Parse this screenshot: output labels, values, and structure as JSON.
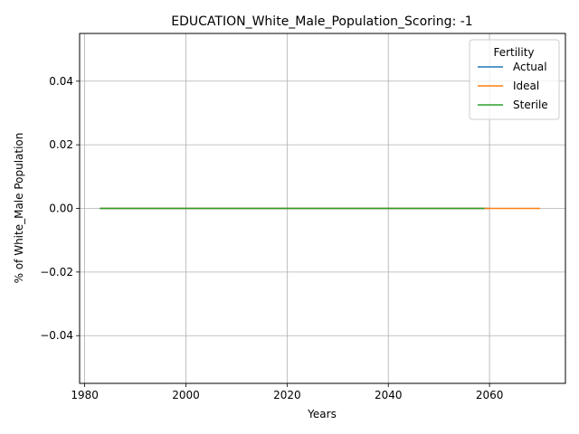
{
  "chart_data": {
    "type": "line",
    "title": "EDUCATION_White_Male_Population_Scoring: -1",
    "xlabel": "Years",
    "ylabel": "% of White_Male Population",
    "xlim": [
      1979,
      2075
    ],
    "ylim": [
      -0.055,
      0.055
    ],
    "xticks": [
      1980,
      2000,
      2020,
      2040,
      2060
    ],
    "yticks": [
      -0.04,
      -0.02,
      0.0,
      0.02,
      0.04
    ],
    "ytick_labels": [
      "−0.04",
      "−0.02",
      "0.00",
      "0.02",
      "0.04"
    ],
    "grid": true,
    "legend": {
      "title": "Fertility",
      "placement": "top-right"
    },
    "series": [
      {
        "name": "Actual",
        "color": "#1f77b4",
        "x": [
          1983,
          2060
        ],
        "y": [
          0.0,
          0.0
        ]
      },
      {
        "name": "Ideal",
        "color": "#ff7f0e",
        "x": [
          1983,
          2070
        ],
        "y": [
          0.0,
          0.0
        ]
      },
      {
        "name": "Sterile",
        "color": "#2ca02c",
        "x": [
          1983,
          2059
        ],
        "y": [
          0.0,
          0.0
        ]
      }
    ]
  }
}
